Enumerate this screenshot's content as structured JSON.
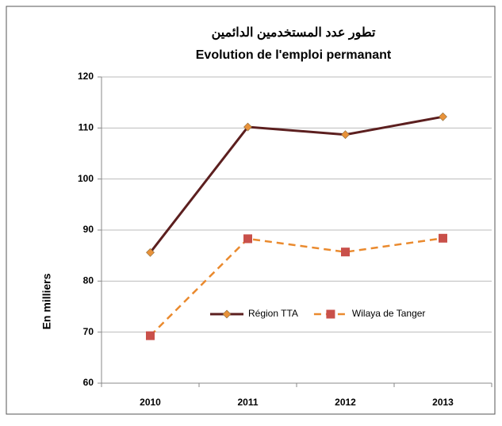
{
  "chart_data": {
    "type": "line",
    "title": "تطور عدد المستخدمين الدائمين",
    "subtitle": "Evolution de l'emploi permanant",
    "y_label": "En milliers",
    "categories": [
      "2010",
      "2011",
      "2012",
      "2013"
    ],
    "series": [
      {
        "name": "Région TTA",
        "color": "#5c1f1f",
        "marker": "diamond",
        "marker_color": "#e8923a",
        "dashed": false,
        "values": [
          85.6,
          110.2,
          108.7,
          112.2
        ]
      },
      {
        "name": "Wilaya de Tanger",
        "color": "#ea8a2e",
        "marker": "square",
        "marker_color": "#c9504a",
        "dashed": true,
        "values": [
          69.3,
          88.3,
          85.7,
          88.4
        ]
      }
    ],
    "ylim": [
      60,
      120
    ],
    "yticks": [
      60,
      70,
      80,
      90,
      100,
      110,
      120
    ],
    "grid": true
  }
}
